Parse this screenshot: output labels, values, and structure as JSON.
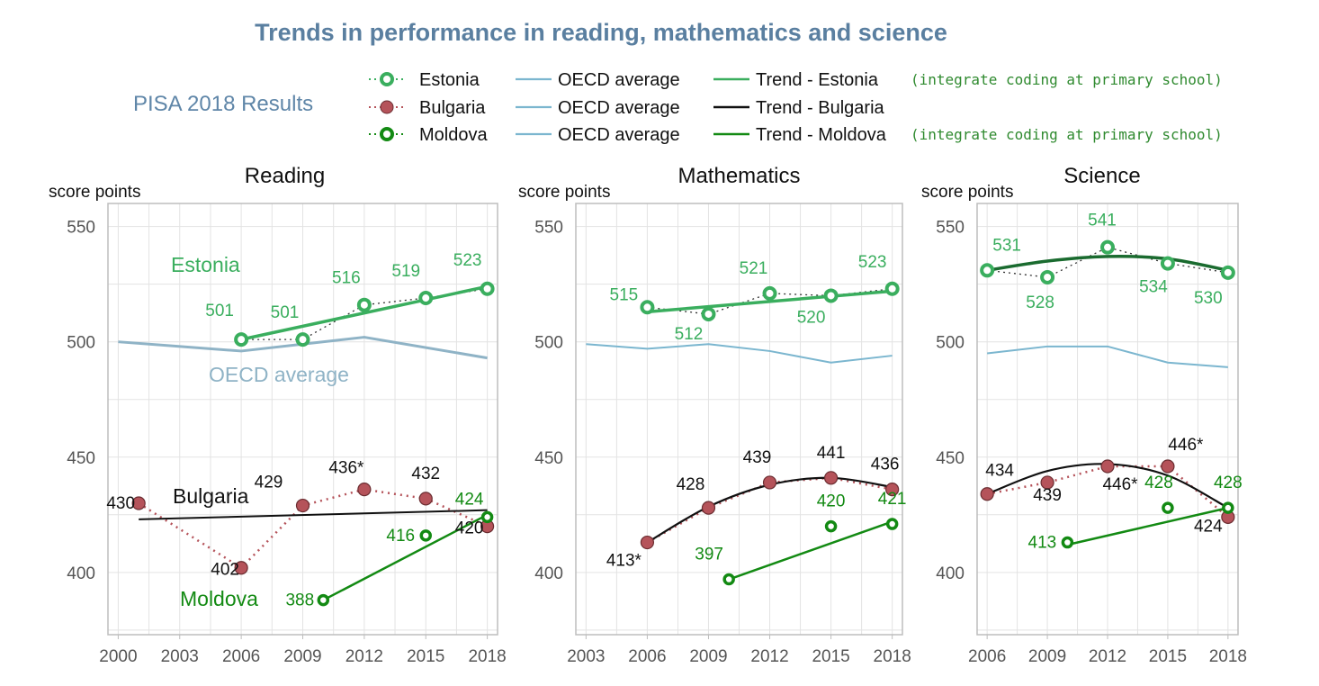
{
  "title": "Trends in performance in reading, mathematics and science",
  "subtitle": "PISA 2018 Results",
  "colors": {
    "estonia": "#3aae5e",
    "bulgaria": "#b5535a",
    "moldova": "#138a13",
    "oecd": "#7bb6cf",
    "trend_bulgaria": "#111111",
    "grid": "#e3e3e3",
    "frame": "#bdbdbd"
  },
  "legend": {
    "rows": [
      {
        "country": "Estonia",
        "oecd": "OECD average",
        "trend": "Trend - Estonia",
        "note": "(integrate coding at primary school)"
      },
      {
        "country": "Bulgaria",
        "oecd": "OECD average",
        "trend": "Trend - Bulgaria",
        "note": ""
      },
      {
        "country": "Moldova",
        "oecd": "OECD average",
        "trend": "Trend - Moldova",
        "note": "(integrate coding at primary school)"
      }
    ]
  },
  "chart_data": [
    {
      "type": "line",
      "title": "Reading",
      "ylabel": "score points",
      "xlim": [
        1999.5,
        2018.5
      ],
      "ylim": [
        373,
        560
      ],
      "xticks": [
        2000,
        2003,
        2006,
        2009,
        2012,
        2015,
        2018
      ],
      "yticks": [
        400,
        450,
        500,
        550
      ],
      "series_labels": [
        {
          "text": "Estonia",
          "series": "Estonia"
        },
        {
          "text": "OECD average",
          "series": "OECD average"
        },
        {
          "text": "Bulgaria",
          "series": "Trend - Bulgaria"
        },
        {
          "text": "Moldova",
          "series": "Moldova"
        }
      ],
      "series": [
        {
          "name": "OECD average",
          "x": [
            2000,
            2006,
            2012,
            2018
          ],
          "y": [
            500,
            496,
            502,
            493
          ]
        },
        {
          "name": "Estonia",
          "x": [
            2006,
            2009,
            2012,
            2015,
            2018
          ],
          "y": [
            501,
            501,
            516,
            519,
            523
          ],
          "labels": [
            "501",
            "501",
            "516",
            "519",
            "523"
          ]
        },
        {
          "name": "Bulgaria",
          "x": [
            2001,
            2006,
            2009,
            2012,
            2015,
            2018
          ],
          "y": [
            430,
            402,
            429,
            436,
            432,
            420
          ],
          "labels": [
            "430",
            "402",
            "429",
            "436*",
            "432",
            "420"
          ]
        },
        {
          "name": "Moldova",
          "x": [
            2010,
            2015,
            2018
          ],
          "y": [
            388,
            416,
            424
          ],
          "labels": [
            "388",
            "416",
            "424"
          ]
        },
        {
          "name": "Trend - Estonia",
          "x": [
            2006,
            2018
          ],
          "y": [
            501,
            524
          ]
        },
        {
          "name": "Trend - Bulgaria",
          "x": [
            2001,
            2018
          ],
          "y": [
            423,
            427
          ]
        },
        {
          "name": "Trend - Moldova",
          "x": [
            2010,
            2018
          ],
          "y": [
            388,
            425
          ]
        }
      ]
    },
    {
      "type": "line",
      "title": "Mathematics",
      "ylabel": "score points",
      "xlim": [
        2002.5,
        2018.5
      ],
      "ylim": [
        373,
        560
      ],
      "xticks": [
        2003,
        2006,
        2009,
        2012,
        2015,
        2018
      ],
      "yticks": [
        400,
        450,
        500,
        550
      ],
      "series_labels": [],
      "series": [
        {
          "name": "OECD average",
          "x": [
            2003,
            2006,
            2009,
            2012,
            2015,
            2018
          ],
          "y": [
            499,
            497,
            499,
            496,
            491,
            494
          ]
        },
        {
          "name": "Estonia",
          "x": [
            2006,
            2009,
            2012,
            2015,
            2018
          ],
          "y": [
            515,
            512,
            521,
            520,
            523
          ],
          "labels": [
            "515",
            "512",
            "521",
            "520",
            "523"
          ]
        },
        {
          "name": "Bulgaria",
          "x": [
            2006,
            2009,
            2012,
            2015,
            2018
          ],
          "y": [
            413,
            428,
            439,
            441,
            436
          ],
          "labels": [
            "413*",
            "428",
            "439",
            "441",
            "436"
          ]
        },
        {
          "name": "Moldova",
          "x": [
            2010,
            2015,
            2018
          ],
          "y": [
            397,
            420,
            421
          ],
          "labels": [
            "397",
            "420",
            "421"
          ]
        },
        {
          "name": "Trend - Estonia",
          "x": [
            2006,
            2018
          ],
          "y": [
            513,
            522
          ]
        },
        {
          "name": "Trend - Bulgaria",
          "x": [
            2006,
            2009,
            2012,
            2015,
            2018
          ],
          "y": [
            413,
            428.5,
            438,
            441,
            437
          ]
        },
        {
          "name": "Trend - Moldova",
          "x": [
            2010,
            2018
          ],
          "y": [
            397,
            422
          ]
        }
      ]
    },
    {
      "type": "line",
      "title": "Science",
      "ylabel": "score points",
      "xlim": [
        2005.5,
        2018.5
      ],
      "ylim": [
        373,
        560
      ],
      "xticks": [
        2006,
        2009,
        2012,
        2015,
        2018
      ],
      "yticks": [
        400,
        450,
        500,
        550
      ],
      "series_labels": [],
      "series": [
        {
          "name": "OECD average",
          "x": [
            2006,
            2009,
            2012,
            2015,
            2018
          ],
          "y": [
            495,
            498,
            498,
            491,
            489
          ]
        },
        {
          "name": "Estonia",
          "x": [
            2006,
            2009,
            2012,
            2015,
            2018
          ],
          "y": [
            531,
            528,
            541,
            534,
            530
          ],
          "labels": [
            "531",
            "528",
            "541",
            "534",
            "530"
          ]
        },
        {
          "name": "Bulgaria",
          "x": [
            2006,
            2009,
            2012,
            2015,
            2018
          ],
          "y": [
            434,
            439,
            446,
            446,
            424
          ],
          "labels": [
            "434",
            "439",
            "446*",
            "446*",
            "424"
          ]
        },
        {
          "name": "Moldova",
          "x": [
            2010,
            2015,
            2018
          ],
          "y": [
            413,
            428,
            428
          ],
          "labels": [
            "413",
            "428",
            "428"
          ]
        },
        {
          "name": "Trend - Estonia",
          "x": [
            2006,
            2009,
            2012,
            2015,
            2018
          ],
          "y": [
            531,
            535,
            537,
            536,
            531
          ]
        },
        {
          "name": "Trend - Bulgaria",
          "x": [
            2006,
            2009,
            2012,
            2015,
            2018
          ],
          "y": [
            434,
            444,
            447,
            442,
            428
          ]
        },
        {
          "name": "Trend - Moldova",
          "x": [
            2010,
            2018
          ],
          "y": [
            412,
            428
          ]
        }
      ]
    }
  ]
}
